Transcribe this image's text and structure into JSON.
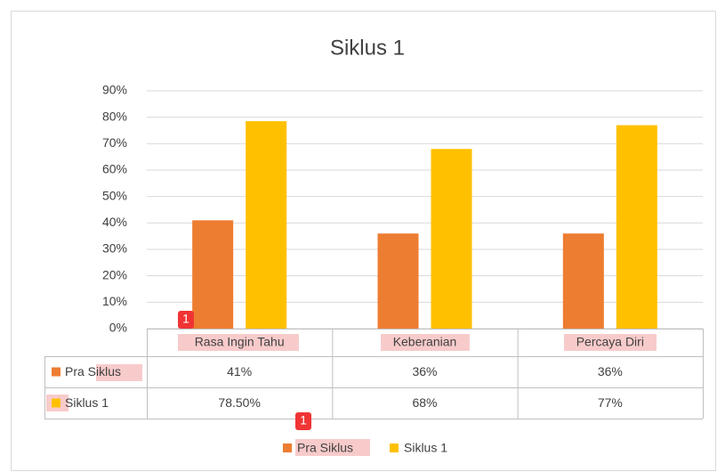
{
  "chart_data": {
    "type": "bar",
    "title": "Siklus 1",
    "categories": [
      "Rasa Ingin Tahu",
      "Keberanian",
      "Percaya Diri"
    ],
    "series": [
      {
        "name": "Pra Siklus",
        "color": "#ed7d31",
        "values": [
          41,
          36,
          36
        ],
        "value_labels": [
          "41%",
          "36%",
          "36%"
        ]
      },
      {
        "name": "Siklus 1",
        "color": "#ffc000",
        "values": [
          78.5,
          68,
          77
        ],
        "value_labels": [
          "78.50%",
          "68%",
          "77%"
        ]
      }
    ],
    "ylim": [
      0,
      90
    ],
    "yticks": [
      {
        "value": 0,
        "label": "0%"
      },
      {
        "value": 10,
        "label": "10%"
      },
      {
        "value": 20,
        "label": "20%"
      },
      {
        "value": 30,
        "label": "30%"
      },
      {
        "value": 40,
        "label": "40%"
      },
      {
        "value": 50,
        "label": "50%"
      },
      {
        "value": 60,
        "label": "60%"
      },
      {
        "value": 70,
        "label": "70%"
      },
      {
        "value": 80,
        "label": "80%"
      },
      {
        "value": 90,
        "label": "90%"
      }
    ],
    "grid": true,
    "legend": "bottom",
    "badges": [
      "1",
      "1"
    ]
  }
}
